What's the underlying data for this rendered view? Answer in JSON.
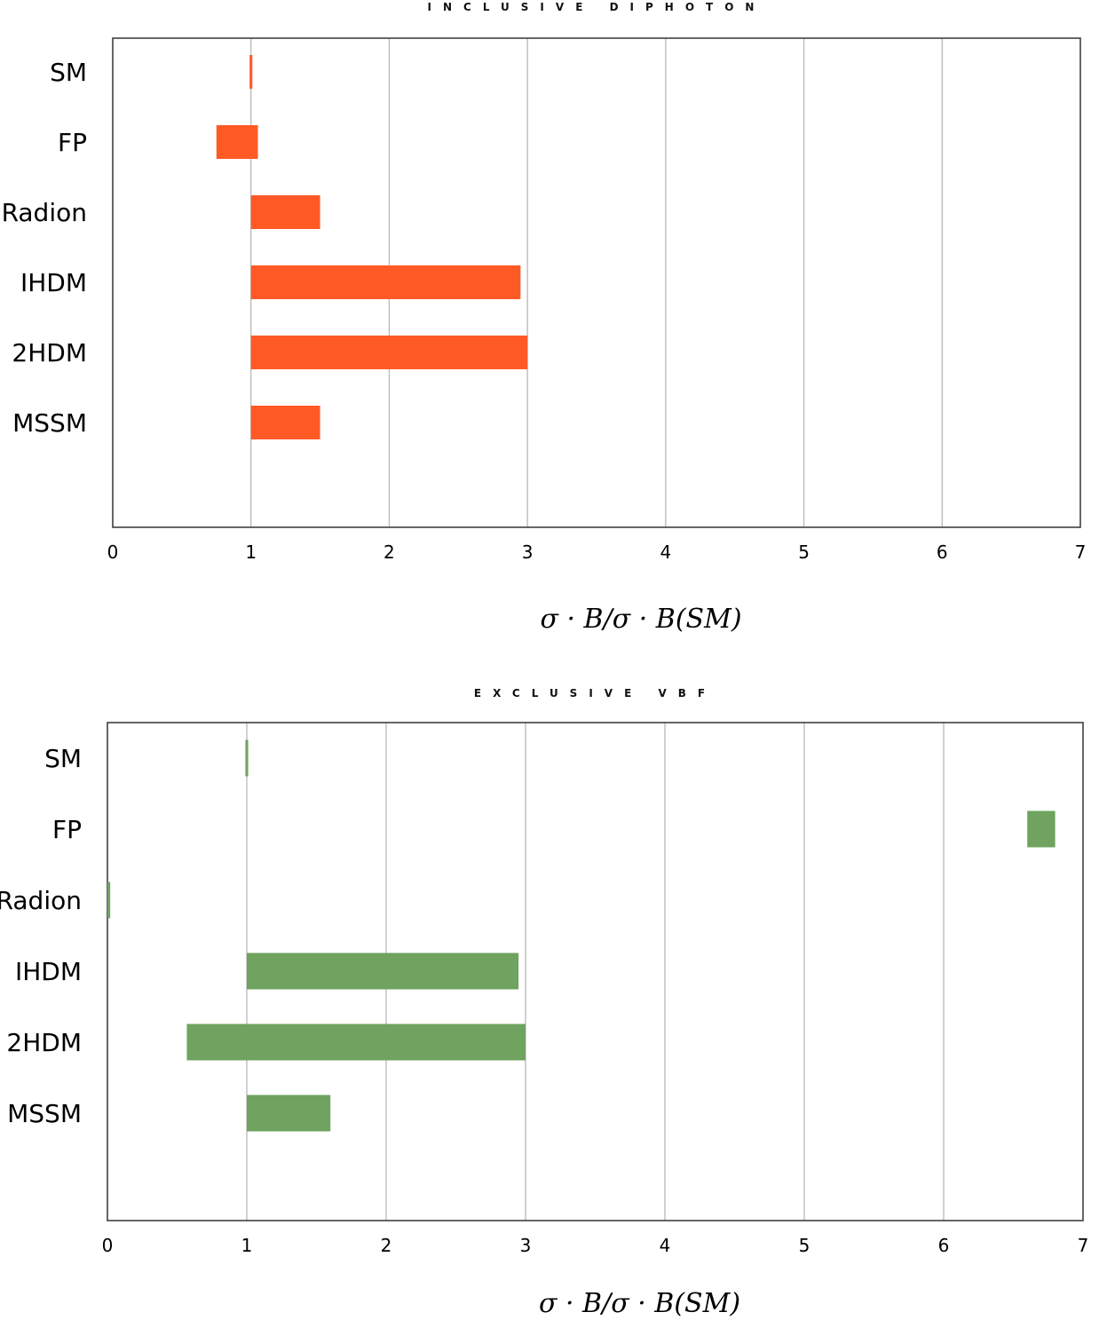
{
  "chart_data": [
    {
      "type": "bar",
      "orientation": "horizontal",
      "title": "INCLUSIVE DIPHOTON",
      "categories": [
        "SM",
        "FP",
        "Radion",
        "IHDM",
        "2HDM",
        "MSSM"
      ],
      "ranges": [
        [
          0.99,
          1.01
        ],
        [
          0.75,
          1.05
        ],
        [
          1.0,
          1.5
        ],
        [
          1.0,
          2.95
        ],
        [
          1.0,
          3.0
        ],
        [
          1.0,
          1.5
        ]
      ],
      "xlim": [
        0,
        7
      ],
      "xticks": [
        0,
        1,
        2,
        3,
        4,
        5,
        6,
        7
      ],
      "xlabel": "σ · B/σ · B(SM)",
      "grid": "vertical",
      "color": "#ff5a26"
    },
    {
      "type": "bar",
      "orientation": "horizontal",
      "title": "EXCLUSIVE VBF",
      "categories": [
        "SM",
        "FP",
        "Radion",
        "IHDM",
        "2HDM",
        "MSSM"
      ],
      "ranges": [
        [
          0.99,
          1.01
        ],
        [
          6.6,
          6.8
        ],
        [
          0.0,
          0.02
        ],
        [
          1.0,
          2.95
        ],
        [
          0.57,
          3.0
        ],
        [
          1.0,
          1.6
        ]
      ],
      "xlim": [
        0,
        7
      ],
      "xticks": [
        0,
        1,
        2,
        3,
        4,
        5,
        6,
        7
      ],
      "xlabel": "σ · B/σ · B(SM)",
      "grid": "vertical",
      "color": "#6fa35f"
    }
  ]
}
